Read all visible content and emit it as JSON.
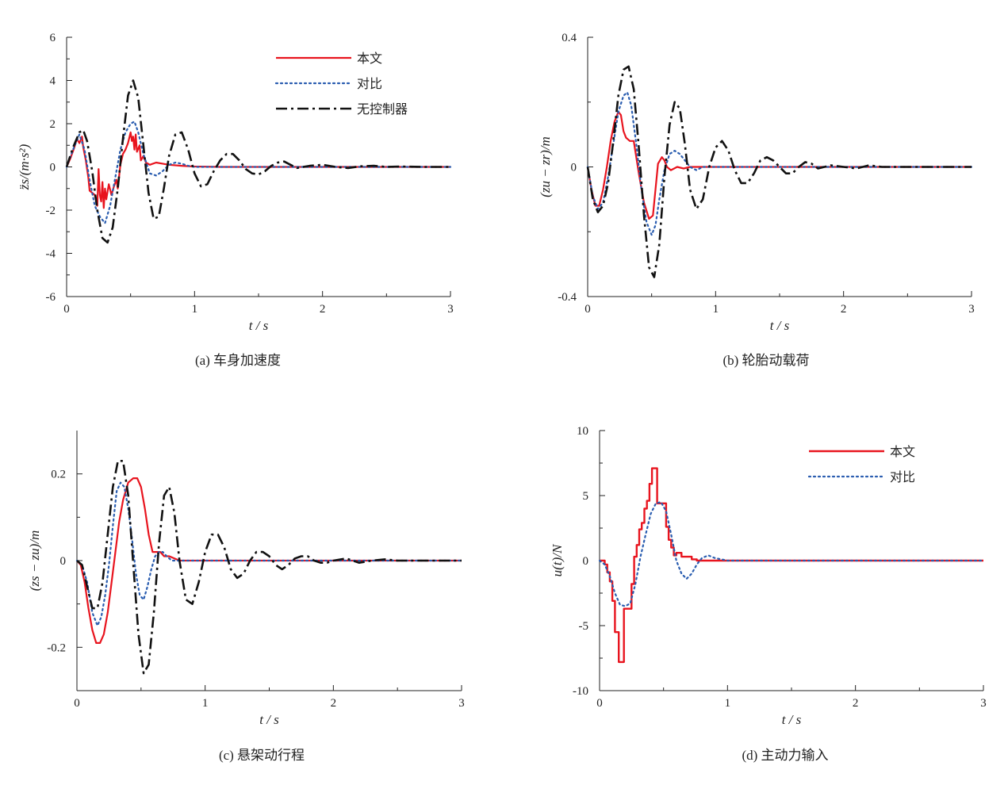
{
  "colors": {
    "proposed": "#e8141e",
    "comparison": "#2a5db0",
    "uncontrolled": "#111111",
    "axis": "#222222"
  },
  "chart_data": [
    {
      "id": "a",
      "type": "line",
      "caption": "(a)  车身加速度",
      "xlabel": "t / s",
      "ylabel": "z̈s/(m·s²)",
      "xlim": [
        0,
        3
      ],
      "ylim": [
        -6,
        6
      ],
      "xticks": [
        "0",
        "1",
        "2",
        "3"
      ],
      "yticks": [
        "-6",
        "-4",
        "-2",
        "0",
        "2",
        "4",
        "6"
      ],
      "legend_position": "top-right",
      "legend": [
        "本文",
        "对比",
        "无控制器"
      ],
      "series": [
        {
          "name": "本文",
          "style": "solid",
          "color": "#e8141e",
          "x": [
            0,
            0.03,
            0.06,
            0.08,
            0.1,
            0.12,
            0.13,
            0.15,
            0.17,
            0.18,
            0.2,
            0.22,
            0.24,
            0.25,
            0.26,
            0.27,
            0.28,
            0.29,
            0.3,
            0.31,
            0.33,
            0.35,
            0.37,
            0.39,
            0.4,
            0.42,
            0.44,
            0.46,
            0.48,
            0.5,
            0.51,
            0.52,
            0.53,
            0.54,
            0.55,
            0.57,
            0.58,
            0.6,
            0.62,
            0.65,
            0.7,
            0.75,
            0.8,
            0.9,
            1.0,
            1.2,
            1.5,
            2.0,
            2.5,
            3.0
          ],
          "y": [
            0,
            0.4,
            0.9,
            1.3,
            1.1,
            1.4,
            0.9,
            0.3,
            -0.5,
            -1.1,
            -1.2,
            -1.3,
            -1.8,
            -0.1,
            -1.3,
            -1.6,
            -0.7,
            -1.9,
            -1.0,
            -1.5,
            -0.8,
            -1.3,
            -0.9,
            -0.6,
            -1.0,
            0.1,
            0.6,
            0.8,
            1.1,
            1.6,
            1.2,
            1.4,
            0.8,
            1.5,
            0.7,
            1.0,
            0.3,
            0.5,
            0.2,
            0.1,
            0.2,
            0.15,
            0.1,
            0.05,
            0.02,
            0.0,
            0.0,
            0.0,
            0.0,
            0.0
          ]
        },
        {
          "name": "对比",
          "style": "dotted",
          "color": "#2a5db0",
          "x": [
            0,
            0.05,
            0.1,
            0.14,
            0.18,
            0.22,
            0.26,
            0.3,
            0.34,
            0.38,
            0.42,
            0.46,
            0.5,
            0.53,
            0.56,
            0.6,
            0.65,
            0.7,
            0.75,
            0.8,
            0.85,
            0.9,
            0.95,
            1.0,
            1.1,
            1.2,
            1.5,
            2.0,
            2.5,
            3.0
          ],
          "y": [
            0,
            0.8,
            1.5,
            0.8,
            -0.6,
            -1.8,
            -2.3,
            -2.6,
            -1.8,
            -0.5,
            0.8,
            1.6,
            2.0,
            2.1,
            1.6,
            0.6,
            -0.3,
            -0.4,
            -0.2,
            0.1,
            0.2,
            0.15,
            0.05,
            0.0,
            0.0,
            0.0,
            0.0,
            0.0,
            0.0,
            0.0
          ]
        },
        {
          "name": "无控制器",
          "style": "dashdot",
          "color": "#111111",
          "x": [
            0,
            0.05,
            0.1,
            0.13,
            0.16,
            0.2,
            0.24,
            0.28,
            0.32,
            0.36,
            0.4,
            0.44,
            0.48,
            0.52,
            0.56,
            0.6,
            0.64,
            0.68,
            0.72,
            0.76,
            0.8,
            0.85,
            0.9,
            0.95,
            1.0,
            1.05,
            1.1,
            1.15,
            1.2,
            1.25,
            1.3,
            1.35,
            1.4,
            1.45,
            1.5,
            1.55,
            1.6,
            1.65,
            1.7,
            1.75,
            1.8,
            1.9,
            2.0,
            2.1,
            2.2,
            2.3,
            2.4,
            2.5,
            2.6,
            2.8,
            3.0
          ],
          "y": [
            0,
            0.9,
            1.6,
            1.7,
            1.2,
            -0.2,
            -2.0,
            -3.3,
            -3.5,
            -2.8,
            -1.0,
            1.3,
            3.3,
            4.0,
            3.2,
            1.0,
            -1.2,
            -2.4,
            -2.3,
            -1.0,
            0.5,
            1.5,
            1.6,
            0.8,
            -0.3,
            -0.9,
            -0.8,
            -0.2,
            0.3,
            0.6,
            0.6,
            0.3,
            -0.1,
            -0.3,
            -0.35,
            -0.2,
            0.05,
            0.2,
            0.25,
            0.1,
            -0.05,
            0.05,
            0.1,
            0.0,
            -0.05,
            0.03,
            0.05,
            0.0,
            0.02,
            0.0,
            0.0
          ]
        }
      ]
    },
    {
      "id": "b",
      "type": "line",
      "caption": "(b)  轮胎动载荷",
      "xlabel": "t / s",
      "ylabel": "(zu − zr)/m",
      "xlim": [
        0,
        3
      ],
      "ylim": [
        -0.4,
        0.4
      ],
      "xticks": [
        "0",
        "1",
        "2",
        "3"
      ],
      "yticks": [
        "-0.4",
        "0",
        "0.4"
      ],
      "series": [
        {
          "name": "本文",
          "style": "solid",
          "color": "#e8141e",
          "x": [
            0,
            0.03,
            0.06,
            0.09,
            0.12,
            0.15,
            0.18,
            0.21,
            0.24,
            0.26,
            0.28,
            0.3,
            0.33,
            0.36,
            0.4,
            0.44,
            0.48,
            0.51,
            0.53,
            0.55,
            0.58,
            0.6,
            0.62,
            0.65,
            0.7,
            0.75,
            0.8,
            0.9,
            1.0,
            1.5,
            2.0,
            3.0
          ],
          "y": [
            0,
            -0.07,
            -0.12,
            -0.12,
            -0.07,
            0.0,
            0.08,
            0.14,
            0.17,
            0.16,
            0.11,
            0.09,
            0.08,
            0.08,
            -0.02,
            -0.11,
            -0.16,
            -0.15,
            -0.07,
            0.01,
            0.03,
            0.02,
            0.0,
            -0.01,
            0.0,
            -0.005,
            0.0,
            0.0,
            0.0,
            0.0,
            0.0,
            0.0
          ]
        },
        {
          "name": "对比",
          "style": "dotted",
          "color": "#2a5db0",
          "x": [
            0,
            0.04,
            0.08,
            0.12,
            0.16,
            0.2,
            0.24,
            0.28,
            0.31,
            0.34,
            0.38,
            0.42,
            0.46,
            0.5,
            0.53,
            0.56,
            0.6,
            0.64,
            0.68,
            0.72,
            0.76,
            0.8,
            0.85,
            0.9,
            1.0,
            1.5,
            2.0,
            3.0
          ],
          "y": [
            0,
            -0.09,
            -0.13,
            -0.11,
            -0.03,
            0.07,
            0.17,
            0.22,
            0.23,
            0.19,
            0.07,
            -0.07,
            -0.17,
            -0.21,
            -0.18,
            -0.1,
            -0.01,
            0.04,
            0.05,
            0.04,
            0.02,
            0.0,
            -0.01,
            0.0,
            0.0,
            0.0,
            0.0,
            0.0
          ]
        },
        {
          "name": "无控制器",
          "style": "dashdot",
          "color": "#111111",
          "x": [
            0,
            0.04,
            0.08,
            0.12,
            0.16,
            0.2,
            0.24,
            0.28,
            0.32,
            0.36,
            0.4,
            0.44,
            0.48,
            0.52,
            0.56,
            0.6,
            0.64,
            0.68,
            0.72,
            0.76,
            0.8,
            0.85,
            0.9,
            0.95,
            1.0,
            1.05,
            1.1,
            1.15,
            1.2,
            1.25,
            1.3,
            1.35,
            1.4,
            1.45,
            1.5,
            1.55,
            1.6,
            1.65,
            1.7,
            1.75,
            1.8,
            1.85,
            1.9,
            2.0,
            2.1,
            2.2,
            2.3,
            2.4,
            2.5,
            2.7,
            3.0
          ],
          "y": [
            0,
            -0.1,
            -0.14,
            -0.12,
            -0.05,
            0.08,
            0.22,
            0.3,
            0.31,
            0.24,
            0.06,
            -0.15,
            -0.31,
            -0.34,
            -0.24,
            -0.03,
            0.13,
            0.2,
            0.18,
            0.07,
            -0.07,
            -0.13,
            -0.1,
            0.0,
            0.06,
            0.08,
            0.05,
            -0.01,
            -0.05,
            -0.05,
            -0.02,
            0.02,
            0.03,
            0.02,
            0.0,
            -0.02,
            -0.02,
            0.0,
            0.015,
            0.01,
            -0.005,
            0.0,
            0.005,
            0.0,
            -0.005,
            0.005,
            0.0,
            0.0,
            0.0,
            0.0,
            0.0
          ]
        }
      ]
    },
    {
      "id": "c",
      "type": "line",
      "caption": "(c)  悬架动行程",
      "xlabel": "t / s",
      "ylabel": "(zs − zu)/m",
      "xlim": [
        0,
        3
      ],
      "ylim": [
        -0.3,
        0.3
      ],
      "xticks": [
        "0",
        "1",
        "2",
        "3"
      ],
      "yticks": [
        "-0.2",
        "0",
        "0.2"
      ],
      "series": [
        {
          "name": "本文",
          "style": "solid",
          "color": "#e8141e",
          "x": [
            0,
            0.03,
            0.06,
            0.09,
            0.12,
            0.15,
            0.18,
            0.21,
            0.24,
            0.27,
            0.3,
            0.33,
            0.36,
            0.4,
            0.44,
            0.47,
            0.5,
            0.53,
            0.56,
            0.59,
            0.62,
            0.65,
            0.68,
            0.72,
            0.76,
            0.8,
            0.85,
            0.9,
            1.0,
            1.5,
            2.0,
            3.0
          ],
          "y": [
            0,
            -0.01,
            -0.05,
            -0.11,
            -0.16,
            -0.19,
            -0.19,
            -0.17,
            -0.12,
            -0.05,
            0.02,
            0.09,
            0.14,
            0.18,
            0.19,
            0.19,
            0.17,
            0.12,
            0.06,
            0.02,
            0.02,
            0.02,
            0.01,
            0.01,
            0.005,
            0.0,
            0.0,
            0.0,
            0.0,
            0.0,
            0.0,
            0.0
          ]
        },
        {
          "name": "对比",
          "style": "dotted",
          "color": "#2a5db0",
          "x": [
            0,
            0.04,
            0.08,
            0.12,
            0.16,
            0.19,
            0.22,
            0.25,
            0.28,
            0.31,
            0.34,
            0.37,
            0.4,
            0.43,
            0.46,
            0.49,
            0.52,
            0.55,
            0.58,
            0.61,
            0.64,
            0.67,
            0.7,
            0.74,
            0.78,
            0.82,
            0.86,
            0.9,
            1.0,
            1.5,
            2.0,
            3.0
          ],
          "y": [
            0,
            -0.01,
            -0.05,
            -0.12,
            -0.15,
            -0.13,
            -0.08,
            -0.01,
            0.08,
            0.16,
            0.18,
            0.17,
            0.12,
            0.05,
            -0.03,
            -0.08,
            -0.09,
            -0.06,
            -0.02,
            0.01,
            0.02,
            0.02,
            0.01,
            0.0,
            0.0,
            0.0,
            0.0,
            0.0,
            0.0,
            0.0,
            0.0,
            0.0
          ]
        },
        {
          "name": "无控制器",
          "style": "dashdot",
          "color": "#111111",
          "x": [
            0,
            0.04,
            0.08,
            0.12,
            0.16,
            0.2,
            0.24,
            0.28,
            0.32,
            0.36,
            0.4,
            0.44,
            0.48,
            0.52,
            0.56,
            0.6,
            0.64,
            0.68,
            0.72,
            0.76,
            0.8,
            0.85,
            0.9,
            0.95,
            1.0,
            1.05,
            1.1,
            1.15,
            1.2,
            1.25,
            1.3,
            1.35,
            1.4,
            1.45,
            1.5,
            1.55,
            1.6,
            1.65,
            1.7,
            1.75,
            1.8,
            1.85,
            1.9,
            1.95,
            2.0,
            2.1,
            2.2,
            2.3,
            2.4,
            2.5,
            2.6,
            2.8,
            3.0
          ],
          "y": [
            0,
            -0.01,
            -0.06,
            -0.11,
            -0.11,
            -0.05,
            0.06,
            0.17,
            0.23,
            0.23,
            0.15,
            -0.01,
            -0.17,
            -0.26,
            -0.24,
            -0.12,
            0.04,
            0.15,
            0.17,
            0.11,
            0.0,
            -0.09,
            -0.1,
            -0.05,
            0.02,
            0.06,
            0.06,
            0.03,
            -0.02,
            -0.04,
            -0.03,
            0.0,
            0.02,
            0.02,
            0.01,
            -0.01,
            -0.02,
            -0.01,
            0.005,
            0.01,
            0.01,
            0.0,
            -0.005,
            -0.005,
            0.0,
            0.005,
            -0.005,
            0.0,
            0.003,
            0.0,
            0.0,
            0.0,
            0.0
          ]
        }
      ]
    },
    {
      "id": "d",
      "type": "line",
      "caption": "(d)  主动力输入",
      "xlabel": "t / s",
      "ylabel": "u(t)/N",
      "xlim": [
        0,
        3
      ],
      "ylim": [
        -10,
        10
      ],
      "xticks": [
        "0",
        "1",
        "2",
        "3"
      ],
      "yticks": [
        "-10",
        "-5",
        "0",
        "5",
        "10"
      ],
      "legend_position": "top-right",
      "legend": [
        "本文",
        "对比"
      ],
      "series": [
        {
          "name": "本文",
          "style": "solid-step",
          "color": "#e8141e",
          "x": [
            0,
            0.04,
            0.04,
            0.06,
            0.06,
            0.08,
            0.08,
            0.1,
            0.1,
            0.12,
            0.12,
            0.15,
            0.15,
            0.19,
            0.19,
            0.25,
            0.25,
            0.27,
            0.27,
            0.29,
            0.29,
            0.31,
            0.31,
            0.33,
            0.33,
            0.35,
            0.35,
            0.37,
            0.37,
            0.39,
            0.39,
            0.41,
            0.41,
            0.43,
            0.43,
            0.45,
            0.45,
            0.52,
            0.52,
            0.54,
            0.54,
            0.56,
            0.56,
            0.58,
            0.58,
            0.6,
            0.6,
            0.64,
            0.64,
            0.72,
            0.72,
            0.76,
            0.76,
            0.8,
            0.8,
            3.0
          ],
          "y": [
            0,
            0,
            -0.3,
            -0.3,
            -0.9,
            -0.9,
            -1.6,
            -1.6,
            -3.1,
            -3.1,
            -5.5,
            -5.5,
            -7.8,
            -7.8,
            -3.7,
            -3.7,
            -1.8,
            -1.8,
            0.3,
            0.3,
            1.2,
            1.2,
            2.4,
            2.4,
            2.9,
            2.9,
            4.0,
            4.0,
            4.6,
            4.6,
            5.9,
            5.9,
            7.1,
            7.1,
            7.1,
            7.1,
            4.4,
            4.4,
            2.6,
            2.6,
            1.6,
            1.6,
            1.0,
            1.0,
            0.4,
            0.4,
            0.6,
            0.6,
            0.3,
            0.3,
            0.1,
            0.1,
            0.0,
            0.0,
            0.0,
            0.0
          ]
        },
        {
          "name": "对比",
          "style": "dotted",
          "color": "#2a5db0",
          "x": [
            0,
            0.04,
            0.08,
            0.12,
            0.16,
            0.2,
            0.24,
            0.28,
            0.32,
            0.36,
            0.4,
            0.44,
            0.48,
            0.52,
            0.56,
            0.6,
            0.64,
            0.68,
            0.72,
            0.76,
            0.8,
            0.85,
            0.9,
            1.0,
            1.5,
            2.0,
            3.0
          ],
          "y": [
            0,
            -0.3,
            -1.2,
            -2.5,
            -3.4,
            -3.5,
            -3.3,
            -1.8,
            0.3,
            2.0,
            3.6,
            4.4,
            4.5,
            3.8,
            2.0,
            0.0,
            -1.0,
            -1.4,
            -1.0,
            -0.3,
            0.2,
            0.4,
            0.2,
            0.0,
            0.0,
            0.0,
            0.0
          ]
        }
      ]
    }
  ]
}
